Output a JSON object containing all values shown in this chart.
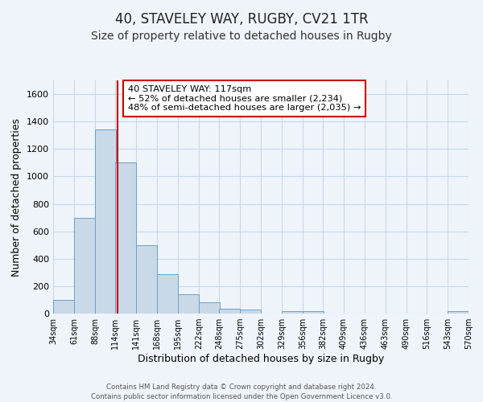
{
  "title": "40, STAVELEY WAY, RUGBY, CV21 1TR",
  "subtitle": "Size of property relative to detached houses in Rugby",
  "xlabel": "Distribution of detached houses by size in Rugby",
  "ylabel": "Number of detached properties",
  "bar_left_edges": [
    34,
    61,
    88,
    114,
    141,
    168,
    195,
    222,
    248,
    275,
    302,
    329,
    356,
    382,
    409,
    436,
    463,
    490,
    516,
    543
  ],
  "bar_heights": [
    100,
    700,
    1340,
    1100,
    500,
    285,
    140,
    80,
    35,
    30,
    0,
    20,
    15,
    0,
    0,
    0,
    0,
    0,
    0,
    20
  ],
  "bin_width": 27,
  "tick_labels": [
    "34sqm",
    "61sqm",
    "88sqm",
    "114sqm",
    "141sqm",
    "168sqm",
    "195sqm",
    "222sqm",
    "248sqm",
    "275sqm",
    "302sqm",
    "329sqm",
    "356sqm",
    "382sqm",
    "409sqm",
    "436sqm",
    "463sqm",
    "490sqm",
    "516sqm",
    "543sqm",
    "570sqm"
  ],
  "property_line_x": 117,
  "bar_color": "#c9d9e8",
  "bar_edge_color": "#6ca0c8",
  "vline_color": "#cc0000",
  "annotation_line1": "40 STAVELEY WAY: 117sqm",
  "annotation_line2": "← 52% of detached houses are smaller (2,234)",
  "annotation_line3": "48% of semi-detached houses are larger (2,035) →",
  "annotation_box_color": "#ffffff",
  "annotation_box_edge": "#cc0000",
  "footer_line1": "Contains HM Land Registry data © Crown copyright and database right 2024.",
  "footer_line2": "Contains public sector information licensed under the Open Government Licence v3.0.",
  "ylim": [
    0,
    1700
  ],
  "yticks": [
    0,
    200,
    400,
    600,
    800,
    1000,
    1200,
    1400,
    1600
  ],
  "grid_color": "#c8d8e8",
  "background_color": "#eef4fa",
  "title_fontsize": 12,
  "subtitle_fontsize": 10
}
